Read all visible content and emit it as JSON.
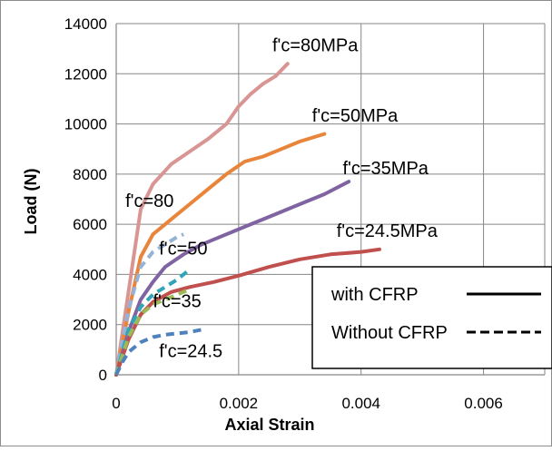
{
  "chart_data": {
    "type": "line",
    "xlabel": "Axial Strain",
    "ylabel": "Load (N)",
    "xlim": [
      0,
      0.007
    ],
    "ylim": [
      0,
      14000
    ],
    "x_ticks": [
      0,
      0.002,
      0.004,
      0.006
    ],
    "x_tick_labels": [
      "0",
      "0.002",
      "0.004",
      "0.006"
    ],
    "y_ticks": [
      0,
      2000,
      4000,
      6000,
      8000,
      10000,
      12000,
      14000
    ],
    "y_tick_labels": [
      "0",
      "2000",
      "4000",
      "6000",
      "8000",
      "10000",
      "12000",
      "14000"
    ],
    "grid": "vertical-and-horizontal",
    "legend": {
      "position": "bottom-right",
      "entries": [
        {
          "label": "with CFRP",
          "style": "solid"
        },
        {
          "label": "Without CFRP",
          "style": "dashed"
        }
      ]
    },
    "series": [
      {
        "label": "f'c=80MPa",
        "style": "solid",
        "color": "#d99594",
        "x": [
          0,
          0.0002,
          0.0004,
          0.0006,
          0.0009,
          0.0012,
          0.0015,
          0.0018,
          0.002,
          0.0022,
          0.0024,
          0.0026,
          0.0028
        ],
        "y": [
          0,
          3300,
          6600,
          7600,
          8400,
          8900,
          9400,
          10000,
          10700,
          11200,
          11600,
          11900,
          12400
        ]
      },
      {
        "label": "f'c=50MPa",
        "style": "solid",
        "color": "#e8853a",
        "x": [
          0,
          0.0002,
          0.0004,
          0.0006,
          0.0009,
          0.0012,
          0.0015,
          0.0018,
          0.0021,
          0.0024,
          0.0027,
          0.003,
          0.0034
        ],
        "y": [
          0,
          2500,
          4700,
          5600,
          6200,
          6800,
          7400,
          8000,
          8500,
          8700,
          9000,
          9300,
          9600
        ]
      },
      {
        "label": "f'c=35MPa",
        "style": "solid",
        "color": "#8064a2",
        "x": [
          0,
          0.0002,
          0.0004,
          0.0006,
          0.0008,
          0.0011,
          0.0014,
          0.0018,
          0.0022,
          0.0026,
          0.003,
          0.0034,
          0.0038
        ],
        "y": [
          0,
          1700,
          3000,
          3700,
          4300,
          4800,
          5200,
          5600,
          6000,
          6400,
          6800,
          7200,
          7700
        ]
      },
      {
        "label": "f'c=24.5MPa",
        "style": "solid",
        "color": "#c0504d",
        "x": [
          0,
          0.0002,
          0.0004,
          0.0006,
          0.0009,
          0.0012,
          0.0016,
          0.002,
          0.0025,
          0.003,
          0.0035,
          0.004,
          0.0043
        ],
        "y": [
          0,
          1400,
          2400,
          2900,
          3300,
          3500,
          3700,
          3950,
          4300,
          4600,
          4800,
          4900,
          5000
        ]
      },
      {
        "label": "f'c=80",
        "style": "dashed",
        "color": "#95b3d7",
        "x": [
          0,
          0.0002,
          0.0004,
          0.0006,
          0.0008,
          0.001,
          0.0011
        ],
        "y": [
          0,
          2600,
          4300,
          4900,
          5200,
          5500,
          5600
        ]
      },
      {
        "label": "f'c=50",
        "style": "dashed",
        "color": "#31a5b7",
        "x": [
          0,
          0.0002,
          0.0004,
          0.0006,
          0.0008,
          0.001,
          0.0012
        ],
        "y": [
          0,
          1800,
          2700,
          3200,
          3500,
          3800,
          4200
        ]
      },
      {
        "label": "f'c=35",
        "style": "dashed",
        "color": "#9bbb59",
        "x": [
          0,
          0.0002,
          0.0004,
          0.0006,
          0.0008,
          0.001,
          0.0012
        ],
        "y": [
          0,
          1500,
          2400,
          2800,
          3000,
          3200,
          3400
        ]
      },
      {
        "label": "f'c=24.5",
        "style": "dashed",
        "color": "#4f81bd",
        "x": [
          0,
          0.0001,
          0.0002,
          0.0004,
          0.0006,
          0.0008,
          0.001,
          0.0012,
          0.0014
        ],
        "y": [
          0,
          500,
          900,
          1300,
          1500,
          1600,
          1650,
          1700,
          1800
        ]
      }
    ],
    "annotations": [
      {
        "text": "f'c=80MPa",
        "x": 0.00255,
        "y": 12900
      },
      {
        "text": "f'c=50MPa",
        "x": 0.0032,
        "y": 10100
      },
      {
        "text": "f'c=35MPa",
        "x": 0.0037,
        "y": 8000
      },
      {
        "text": "f'c=24.5MPa",
        "x": 0.0036,
        "y": 5500
      },
      {
        "text": "f'c=80",
        "x": 0.00015,
        "y": 6700
      },
      {
        "text": "f'c=50",
        "x": 0.0007,
        "y": 4800
      },
      {
        "text": "f'c=35",
        "x": 0.0006,
        "y": 2700
      },
      {
        "text": "f'c=24.5",
        "x": 0.0007,
        "y": 700
      }
    ]
  }
}
